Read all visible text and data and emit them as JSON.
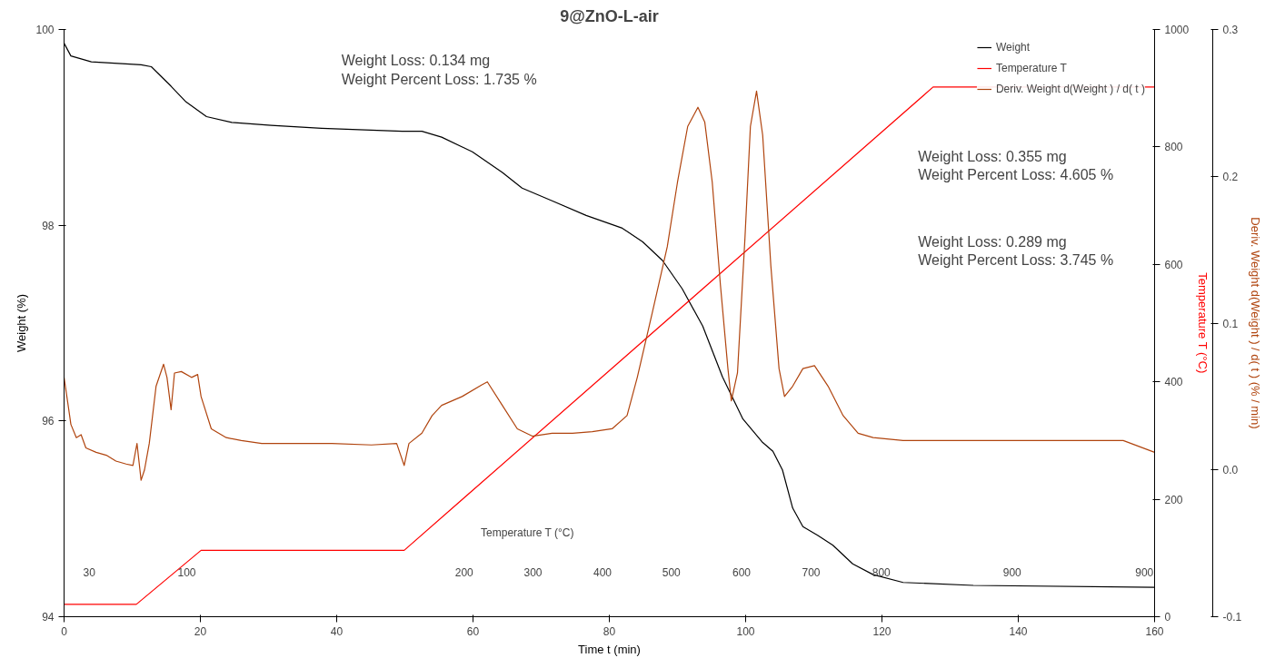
{
  "chart_data": {
    "type": "line",
    "title": "9@ZnO-L-air",
    "xlabel": "Time t (min)",
    "ylabel": "Weight (%)",
    "y2label": "Temperature T (°C)",
    "y3label": "Deriv. Weight d(Weight ) / d( t ) (% / min)",
    "xlim": [
      0,
      160
    ],
    "xticks": [
      0,
      20,
      40,
      60,
      80,
      100,
      120,
      140,
      160
    ],
    "ylim": [
      94,
      100
    ],
    "yticks": [
      94,
      96,
      98,
      100
    ],
    "y2lim": [
      0,
      1000
    ],
    "y2ticks": [
      0,
      200,
      400,
      600,
      800,
      1000
    ],
    "y3lim": [
      -0.1,
      0.3
    ],
    "y3ticks": [
      {
        "value": -0.1,
        "label": "-0.1"
      },
      {
        "value": 0,
        "label": "0.0"
      },
      {
        "value": 0.1,
        "label": "0.1"
      },
      {
        "value": 0.2,
        "label": "0.2"
      },
      {
        "value": 0.3,
        "label": "0.3"
      }
    ],
    "grid": false,
    "legend": "top right",
    "series": [
      {
        "name": "Weight",
        "color": "#000000",
        "x": [
          0,
          1,
          4,
          11.3,
          12.8,
          15.7,
          17.9,
          20.9,
          24.6,
          30.4,
          37.8,
          49.6,
          52.5,
          55.4,
          59.9,
          64.3,
          67.2,
          71.6,
          76.6,
          81.9,
          84.9,
          87.8,
          90.7,
          93.7,
          96.6,
          99.6,
          102.5,
          104,
          105.4,
          106.9,
          108.4,
          110.6,
          112.8,
          115.7,
          118.7,
          123.1,
          133.4,
          160
        ],
        "values": [
          99.86,
          99.73,
          99.67,
          99.64,
          99.62,
          99.42,
          99.26,
          99.11,
          99.05,
          99.02,
          98.99,
          98.96,
          98.96,
          98.9,
          98.75,
          98.54,
          98.38,
          98.25,
          98.1,
          97.97,
          97.83,
          97.64,
          97.35,
          96.97,
          96.45,
          96.02,
          95.78,
          95.69,
          95.5,
          95.11,
          94.92,
          94.83,
          94.73,
          94.54,
          94.43,
          94.35,
          94.32,
          94.3
        ]
      },
      {
        "name": "Temperature T",
        "color": "#ff0000",
        "axis": "y2",
        "x": [
          0,
          10.6,
          20.1,
          49.9,
          127.5,
          160
        ],
        "values": [
          21,
          21,
          113,
          113,
          902,
          902
        ]
      },
      {
        "name": "Deriv. Weight d(Weight ) / d( t )",
        "color": "#b0440e",
        "axis": "y3",
        "x": [
          0,
          0.6,
          1.0,
          1.8,
          2.5,
          3.2,
          4.7,
          6.2,
          7.6,
          9.1,
          10.1,
          10.7,
          11.3,
          11.8,
          12.5,
          13.5,
          14.6,
          15.1,
          15.7,
          16.2,
          17.2,
          18.7,
          19.6,
          20.1,
          21.6,
          23.8,
          26.0,
          29.0,
          33.4,
          39.3,
          45.1,
          48.8,
          49.9,
          50.6,
          52.5,
          54.0,
          55.4,
          58.4,
          61.3,
          62.1,
          64.3,
          66.5,
          68.7,
          71.6,
          74.6,
          77.5,
          80.4,
          82.6,
          84.1,
          86.3,
          88.5,
          90.0,
          91.5,
          93.0,
          94.0,
          95.1,
          96.3,
          97.4,
          97.9,
          98.8,
          99.9,
          100.7,
          101.6,
          102.5,
          103.7,
          104.9,
          105.7,
          106.9,
          108.4,
          110.1,
          112.1,
          114.3,
          116.5,
          118.7,
          123.1,
          127.5,
          133.4,
          140.7,
          148.1,
          155.4,
          160
        ],
        "values": [
          0.063,
          0.044,
          0.031,
          0.022,
          0.024,
          0.015,
          0.012,
          0.01,
          0.006,
          0.004,
          0.003,
          0.018,
          -0.007,
          0.0,
          0.018,
          0.057,
          0.072,
          0.063,
          0.041,
          0.066,
          0.067,
          0.063,
          0.065,
          0.05,
          0.028,
          0.022,
          0.02,
          0.018,
          0.018,
          0.018,
          0.017,
          0.018,
          0.003,
          0.018,
          0.025,
          0.037,
          0.044,
          0.05,
          0.058,
          0.06,
          0.044,
          0.028,
          0.023,
          0.025,
          0.025,
          0.026,
          0.028,
          0.037,
          0.063,
          0.107,
          0.152,
          0.196,
          0.234,
          0.247,
          0.237,
          0.196,
          0.126,
          0.069,
          0.047,
          0.066,
          0.158,
          0.234,
          0.258,
          0.228,
          0.139,
          0.069,
          0.05,
          0.057,
          0.069,
          0.071,
          0.057,
          0.037,
          0.025,
          0.022,
          0.02,
          0.02,
          0.02,
          0.02,
          0.02,
          0.02,
          0.012
        ]
      }
    ],
    "annotations": [
      "Weight Loss: 0.134 mg\nWeight Percent Loss: 1.735 %",
      "Weight Loss: 0.355 mg\nWeight Percent Loss: 4.605 %",
      "Weight Loss: 0.289 mg\nWeight Percent Loss: 3.745 %",
      "Temperature T (°C)",
      "30",
      "100",
      "200",
      "300",
      "400",
      "500",
      "600",
      "700",
      "800",
      "900",
      "900"
    ]
  }
}
